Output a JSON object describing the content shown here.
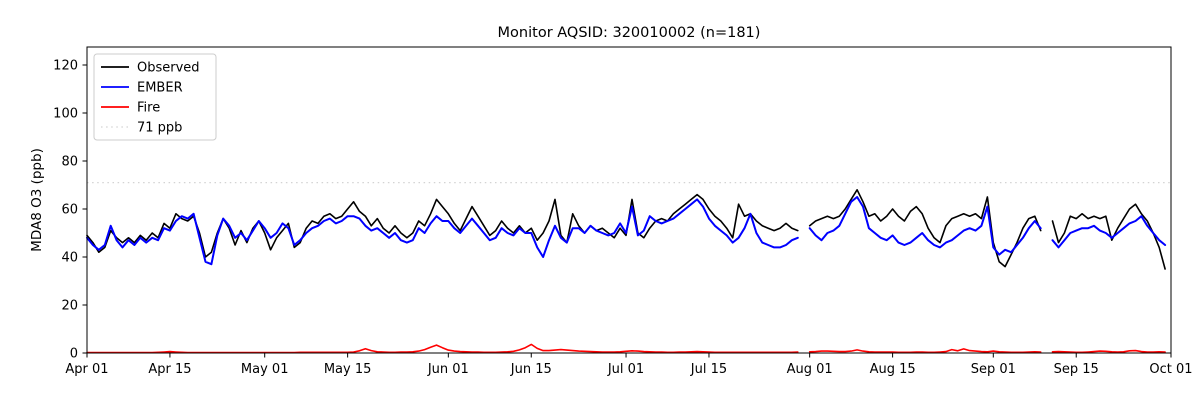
{
  "chart_data": {
    "type": "line",
    "title": "Monitor AQSID: 320010002 (n=181)",
    "xlabel": "",
    "ylabel": "MDA8 O3 (ppb)",
    "ylim": [
      0,
      127.5
    ],
    "y_ticks": [
      0,
      20,
      40,
      60,
      80,
      100,
      120
    ],
    "x_start": "Apr 01",
    "x_end": "Oct 01",
    "n_days": 183,
    "n_points": 181,
    "grid": false,
    "legend_position": "upper left",
    "legend": [
      "Observed",
      "EMBER",
      "Fire",
      "71 ppb"
    ],
    "x_ticks": [
      {
        "label": "Apr 01",
        "day": 0
      },
      {
        "label": "Apr 15",
        "day": 14
      },
      {
        "label": "May 01",
        "day": 30
      },
      {
        "label": "May 15",
        "day": 44
      },
      {
        "label": "Jun 01",
        "day": 61
      },
      {
        "label": "Jun 15",
        "day": 75
      },
      {
        "label": "Jul 01",
        "day": 91
      },
      {
        "label": "Jul 15",
        "day": 105
      },
      {
        "label": "Aug 01",
        "day": 122
      },
      {
        "label": "Aug 15",
        "day": 136
      },
      {
        "label": "Sep 01",
        "day": 153
      },
      {
        "label": "Sep 15",
        "day": 167
      },
      {
        "label": "Oct 01",
        "day": 183
      }
    ],
    "reference_line": {
      "label": "71 ppb",
      "value": 71,
      "color": "#d3d3d3",
      "style": "dotted"
    },
    "series": [
      {
        "name": "Observed",
        "color": "#000000",
        "values": [
          49,
          46,
          42,
          44,
          51,
          48,
          46,
          48,
          46,
          49,
          47,
          50,
          48,
          54,
          52,
          58,
          56,
          55,
          57,
          50,
          40,
          42,
          50,
          56,
          52,
          45,
          51,
          46,
          52,
          55,
          50,
          43,
          48,
          51,
          54,
          44,
          46,
          52,
          55,
          54,
          57,
          58,
          56,
          57,
          60,
          63,
          59,
          57,
          53,
          56,
          52,
          50,
          53,
          50,
          48,
          50,
          55,
          53,
          58,
          64,
          61,
          58,
          54,
          51,
          56,
          61,
          57,
          53,
          49,
          51,
          55,
          52,
          50,
          53,
          50,
          52,
          47,
          50,
          55,
          64,
          49,
          46,
          58,
          53,
          50,
          53,
          51,
          52,
          50,
          48,
          52,
          49,
          64,
          50,
          48,
          52,
          55,
          56,
          55,
          58,
          60,
          62,
          64,
          66,
          64,
          60,
          57,
          55,
          52,
          48,
          62,
          57,
          58,
          55,
          53,
          52,
          51,
          52,
          54,
          52,
          51,
          null,
          53,
          55,
          56,
          57,
          56,
          57,
          60,
          64,
          68,
          63,
          57,
          58,
          55,
          57,
          60,
          57,
          55,
          59,
          61,
          58,
          52,
          48,
          46,
          53,
          56,
          57,
          58,
          57,
          58,
          56,
          65,
          46,
          38,
          36,
          41,
          46,
          52,
          56,
          57,
          51,
          null,
          55,
          46,
          50,
          57,
          56,
          58,
          56,
          57,
          56,
          57,
          47,
          52,
          56,
          60,
          62,
          58,
          55,
          50,
          44,
          35
        ]
      },
      {
        "name": "EMBER",
        "color": "#0000ff",
        "values": [
          48,
          45,
          43,
          45,
          53,
          47,
          44,
          47,
          45,
          48,
          46,
          48,
          47,
          52,
          51,
          55,
          57,
          56,
          58,
          48,
          38,
          37,
          49,
          56,
          53,
          48,
          50,
          47,
          51,
          55,
          52,
          48,
          50,
          54,
          52,
          45,
          47,
          50,
          52,
          53,
          55,
          56,
          54,
          55,
          57,
          57,
          56,
          53,
          51,
          52,
          50,
          48,
          50,
          47,
          46,
          47,
          52,
          50,
          54,
          57,
          55,
          55,
          52,
          50,
          53,
          56,
          53,
          50,
          47,
          48,
          52,
          50,
          49,
          52,
          50,
          50,
          44,
          40,
          47,
          53,
          48,
          46,
          52,
          52,
          50,
          53,
          51,
          50,
          49,
          50,
          54,
          50,
          61,
          49,
          51,
          57,
          55,
          54,
          55,
          56,
          58,
          60,
          62,
          64,
          61,
          56,
          53,
          51,
          49,
          46,
          48,
          52,
          58,
          50,
          46,
          45,
          44,
          44,
          45,
          47,
          48,
          null,
          52,
          49,
          47,
          50,
          51,
          53,
          58,
          63,
          65,
          61,
          52,
          50,
          48,
          47,
          49,
          46,
          45,
          46,
          48,
          50,
          47,
          45,
          44,
          46,
          47,
          49,
          51,
          52,
          51,
          53,
          61,
          44,
          41,
          43,
          42,
          45,
          48,
          52,
          55,
          52,
          null,
          47,
          44,
          47,
          50,
          51,
          52,
          52,
          53,
          51,
          50,
          48,
          50,
          52,
          54,
          55,
          57,
          53,
          50,
          47,
          45
        ]
      },
      {
        "name": "Fire",
        "color": "#ff0000",
        "values": [
          0.2,
          0.2,
          0.2,
          0.2,
          0.2,
          0.2,
          0.2,
          0.2,
          0.2,
          0.2,
          0.2,
          0.2,
          0.3,
          0.4,
          0.6,
          0.4,
          0.3,
          0.2,
          0.2,
          0.2,
          0.2,
          0.2,
          0.2,
          0.2,
          0.2,
          0.2,
          0.2,
          0.2,
          0.2,
          0.2,
          0.2,
          0.2,
          0.2,
          0.2,
          0.2,
          0.2,
          0.3,
          0.3,
          0.3,
          0.3,
          0.3,
          0.3,
          0.3,
          0.3,
          0.3,
          0.4,
          0.9,
          1.8,
          1.0,
          0.5,
          0.4,
          0.3,
          0.3,
          0.4,
          0.4,
          0.5,
          0.8,
          1.4,
          2.4,
          3.3,
          2.2,
          1.2,
          0.8,
          0.6,
          0.5,
          0.4,
          0.4,
          0.3,
          0.3,
          0.3,
          0.4,
          0.5,
          0.7,
          1.3,
          2.2,
          3.6,
          1.9,
          1.0,
          1.0,
          1.2,
          1.4,
          1.2,
          1.0,
          0.8,
          0.7,
          0.6,
          0.5,
          0.4,
          0.4,
          0.4,
          0.5,
          0.7,
          0.9,
          0.8,
          0.6,
          0.5,
          0.4,
          0.4,
          0.3,
          0.3,
          0.4,
          0.4,
          0.5,
          0.6,
          0.5,
          0.4,
          0.3,
          0.3,
          0.3,
          0.3,
          0.3,
          0.3,
          0.3,
          0.3,
          0.3,
          0.3,
          0.3,
          0.3,
          0.3,
          0.3,
          0.4,
          null,
          0.5,
          0.6,
          0.8,
          0.8,
          0.7,
          0.6,
          0.6,
          0.8,
          1.3,
          0.8,
          0.5,
          0.4,
          0.4,
          0.4,
          0.4,
          0.3,
          0.3,
          0.3,
          0.4,
          0.4,
          0.3,
          0.3,
          0.4,
          0.6,
          1.4,
          0.9,
          1.7,
          1.0,
          0.8,
          0.6,
          0.5,
          0.8,
          0.5,
          0.4,
          0.3,
          0.3,
          0.3,
          0.4,
          0.5,
          0.4,
          null,
          0.5,
          0.6,
          0.5,
          0.4,
          0.3,
          0.3,
          0.4,
          0.6,
          0.8,
          0.7,
          0.5,
          0.4,
          0.5,
          0.9,
          1.0,
          0.6,
          0.4,
          0.4,
          0.5,
          0.4
        ]
      }
    ]
  }
}
